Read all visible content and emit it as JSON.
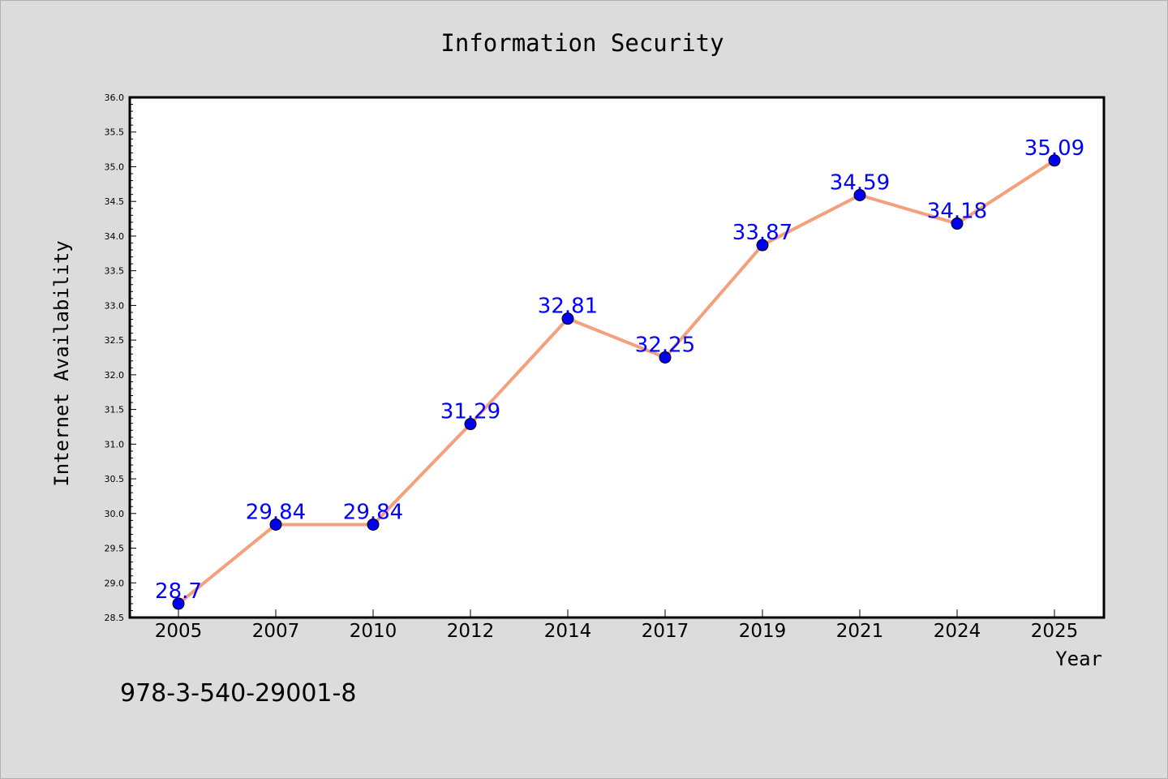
{
  "chart_data": {
    "type": "line",
    "title": "Information Security",
    "xlabel": "Year",
    "ylabel": "Internet Availability",
    "categories": [
      "2005",
      "2007",
      "2010",
      "2012",
      "2014",
      "2017",
      "2019",
      "2021",
      "2024",
      "2025"
    ],
    "series": [
      {
        "values": [
          28.7,
          29.84,
          29.84,
          31.29,
          32.81,
          32.25,
          33.87,
          34.59,
          34.18,
          35.09
        ],
        "labels": [
          "28.7",
          "29.84",
          "29.84",
          "31.29",
          "32.81",
          "32.25",
          "33.87",
          "34.59",
          "34.18",
          "35.09"
        ],
        "line_color": "#f4a07c",
        "marker_color": "#0000ee"
      }
    ],
    "ylim": [
      28.5,
      36.0
    ],
    "yticks": [
      "28.5",
      "29.0",
      "29.5",
      "30.0",
      "30.5",
      "31.0",
      "31.5",
      "32.0",
      "32.5",
      "33.0",
      "33.5",
      "34.0",
      "34.5",
      "35.0",
      "35.5",
      "36.0"
    ],
    "grid": false,
    "data_label_color": "#0000ff"
  },
  "footnote": "978-3-540-29001-8"
}
